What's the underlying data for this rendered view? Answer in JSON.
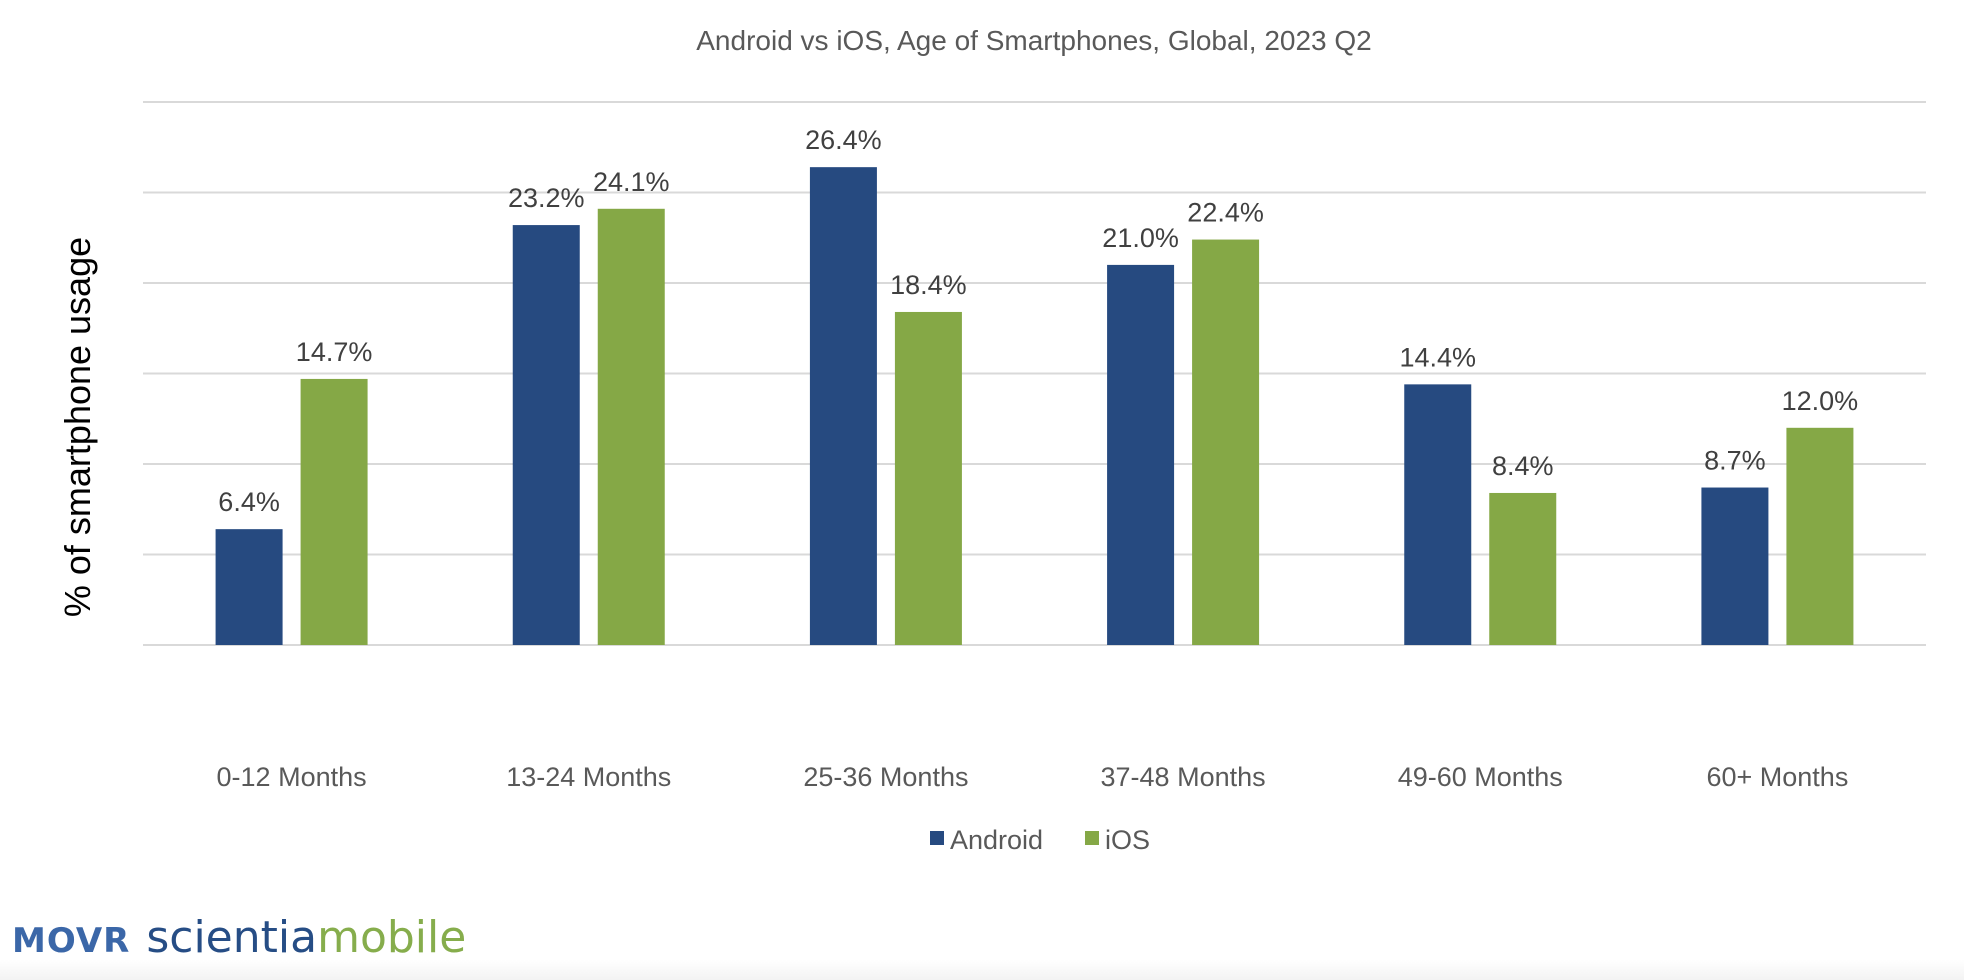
{
  "chart_data": {
    "type": "bar",
    "title": "Android vs iOS, Age of Smartphones, Global, 2023 Q2",
    "ylabel": "% of smartphone usage",
    "xlabel": "",
    "ylim": [
      0,
      30
    ],
    "grid": true,
    "legend_position": "bottom",
    "categories": [
      "0-12 Months",
      "13-24 Months",
      "25-36 Months",
      "37-48 Months",
      "49-60 Months",
      "60+ Months"
    ],
    "series": [
      {
        "name": "Android",
        "color": "#264a80",
        "values": [
          6.4,
          23.2,
          26.4,
          21.0,
          14.4,
          8.7
        ],
        "labels": [
          "6.4%",
          "23.2%",
          "26.4%",
          "21.0%",
          "14.4%",
          "8.7%"
        ]
      },
      {
        "name": "iOS",
        "color": "#85a846",
        "values": [
          14.7,
          24.1,
          18.4,
          22.4,
          8.4,
          12.0
        ],
        "labels": [
          "14.7%",
          "24.1%",
          "18.4%",
          "22.4%",
          "8.4%",
          "12.0%"
        ]
      }
    ]
  },
  "logo": {
    "movr": "MOVR",
    "scientia": "scientia",
    "mobile": "mobile"
  }
}
